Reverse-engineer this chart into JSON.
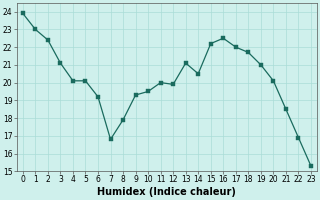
{
  "x": [
    0,
    1,
    2,
    3,
    4,
    5,
    6,
    7,
    8,
    9,
    10,
    11,
    12,
    13,
    14,
    15,
    16,
    17,
    18,
    19,
    20,
    21,
    22,
    23
  ],
  "y": [
    23.9,
    23.0,
    22.4,
    21.1,
    20.1,
    20.1,
    19.2,
    16.8,
    17.9,
    19.3,
    19.5,
    20.0,
    19.9,
    21.1,
    20.5,
    22.2,
    22.5,
    22.0,
    21.7,
    21.0,
    20.1,
    18.5,
    16.9,
    15.3
  ],
  "line_color": "#1a6b5e",
  "marker": "s",
  "marker_size": 2.5,
  "bg_color": "#cff0ec",
  "grid_color": "#aaddd7",
  "xlabel": "Humidex (Indice chaleur)",
  "xlim": [
    -0.5,
    23.5
  ],
  "ylim": [
    15,
    24.5
  ],
  "yticks": [
    15,
    16,
    17,
    18,
    19,
    20,
    21,
    22,
    23,
    24
  ],
  "xticks": [
    0,
    1,
    2,
    3,
    4,
    5,
    6,
    7,
    8,
    9,
    10,
    11,
    12,
    13,
    14,
    15,
    16,
    17,
    18,
    19,
    20,
    21,
    22,
    23
  ],
  "tick_fontsize": 5.5,
  "xlabel_fontsize": 7,
  "xlabel_fontweight": "bold"
}
